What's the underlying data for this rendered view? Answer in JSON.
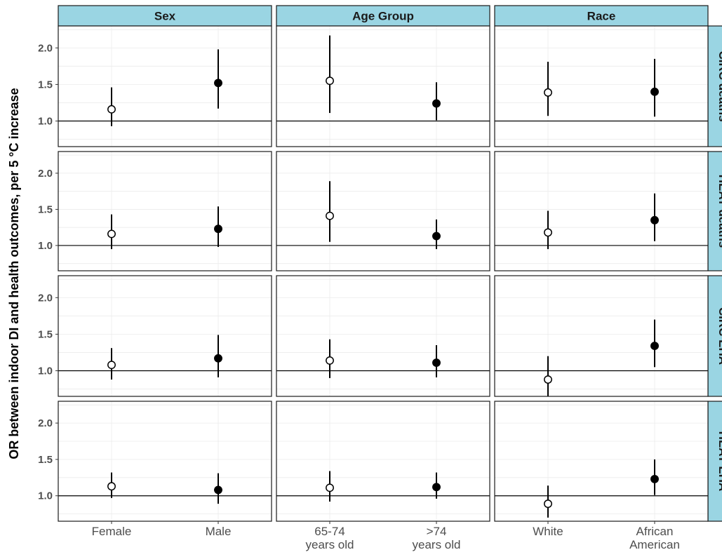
{
  "chart_data": {
    "type": "scatter",
    "ylabel": "OR between indoor DI and health outcomes, per 5 °C increase",
    "ylim": [
      0.65,
      2.3
    ],
    "y_ticks": [
      "2.0",
      "1.5",
      "1.0"
    ],
    "y_tick_values": [
      2.0,
      1.5,
      1.0
    ],
    "reference_line": 1.0,
    "grid": true,
    "columns": [
      {
        "label": "Sex",
        "categories": [
          "Female",
          "Male"
        ]
      },
      {
        "label": "Age Group",
        "categories": [
          "65-74\nyears old",
          ">74\nyears old"
        ]
      },
      {
        "label": "Race",
        "categories": [
          "White",
          "African\nAmerican"
        ]
      }
    ],
    "rows": [
      {
        "label": "CIRC deaths"
      },
      {
        "label": "HEAT deaths"
      },
      {
        "label": "CIRC EHA"
      },
      {
        "label": "HEAT EHA"
      }
    ],
    "marker_fill": [
      "open",
      "filled"
    ],
    "panels": [
      [
        [
          {
            "or": 1.16,
            "lo": 0.93,
            "hi": 1.46
          },
          {
            "or": 1.52,
            "lo": 1.17,
            "hi": 1.98
          }
        ],
        [
          {
            "or": 1.55,
            "lo": 1.11,
            "hi": 2.17
          },
          {
            "or": 1.24,
            "lo": 1.01,
            "hi": 1.53
          }
        ],
        [
          {
            "or": 1.39,
            "lo": 1.07,
            "hi": 1.81
          },
          {
            "or": 1.4,
            "lo": 1.06,
            "hi": 1.85
          }
        ]
      ],
      [
        [
          {
            "or": 1.16,
            "lo": 0.95,
            "hi": 1.43
          },
          {
            "or": 1.23,
            "lo": 0.98,
            "hi": 1.54
          }
        ],
        [
          {
            "or": 1.41,
            "lo": 1.05,
            "hi": 1.89
          },
          {
            "or": 1.13,
            "lo": 0.95,
            "hi": 1.36
          }
        ],
        [
          {
            "or": 1.18,
            "lo": 0.95,
            "hi": 1.48
          },
          {
            "or": 1.35,
            "lo": 1.06,
            "hi": 1.72
          }
        ]
      ],
      [
        [
          {
            "or": 1.08,
            "lo": 0.88,
            "hi": 1.31
          },
          {
            "or": 1.17,
            "lo": 0.91,
            "hi": 1.49
          }
        ],
        [
          {
            "or": 1.14,
            "lo": 0.9,
            "hi": 1.43
          },
          {
            "or": 1.11,
            "lo": 0.91,
            "hi": 1.35
          }
        ],
        [
          {
            "or": 0.88,
            "lo": 0.65,
            "hi": 1.2
          },
          {
            "or": 1.34,
            "lo": 1.05,
            "hi": 1.7
          }
        ]
      ],
      [
        [
          {
            "or": 1.13,
            "lo": 0.97,
            "hi": 1.32
          },
          {
            "or": 1.08,
            "lo": 0.89,
            "hi": 1.31
          }
        ],
        [
          {
            "or": 1.11,
            "lo": 0.92,
            "hi": 1.34
          },
          {
            "or": 1.12,
            "lo": 0.96,
            "hi": 1.32
          }
        ],
        [
          {
            "or": 0.89,
            "lo": 0.7,
            "hi": 1.14
          },
          {
            "or": 1.23,
            "lo": 1.01,
            "hi": 1.5
          }
        ]
      ]
    ]
  }
}
